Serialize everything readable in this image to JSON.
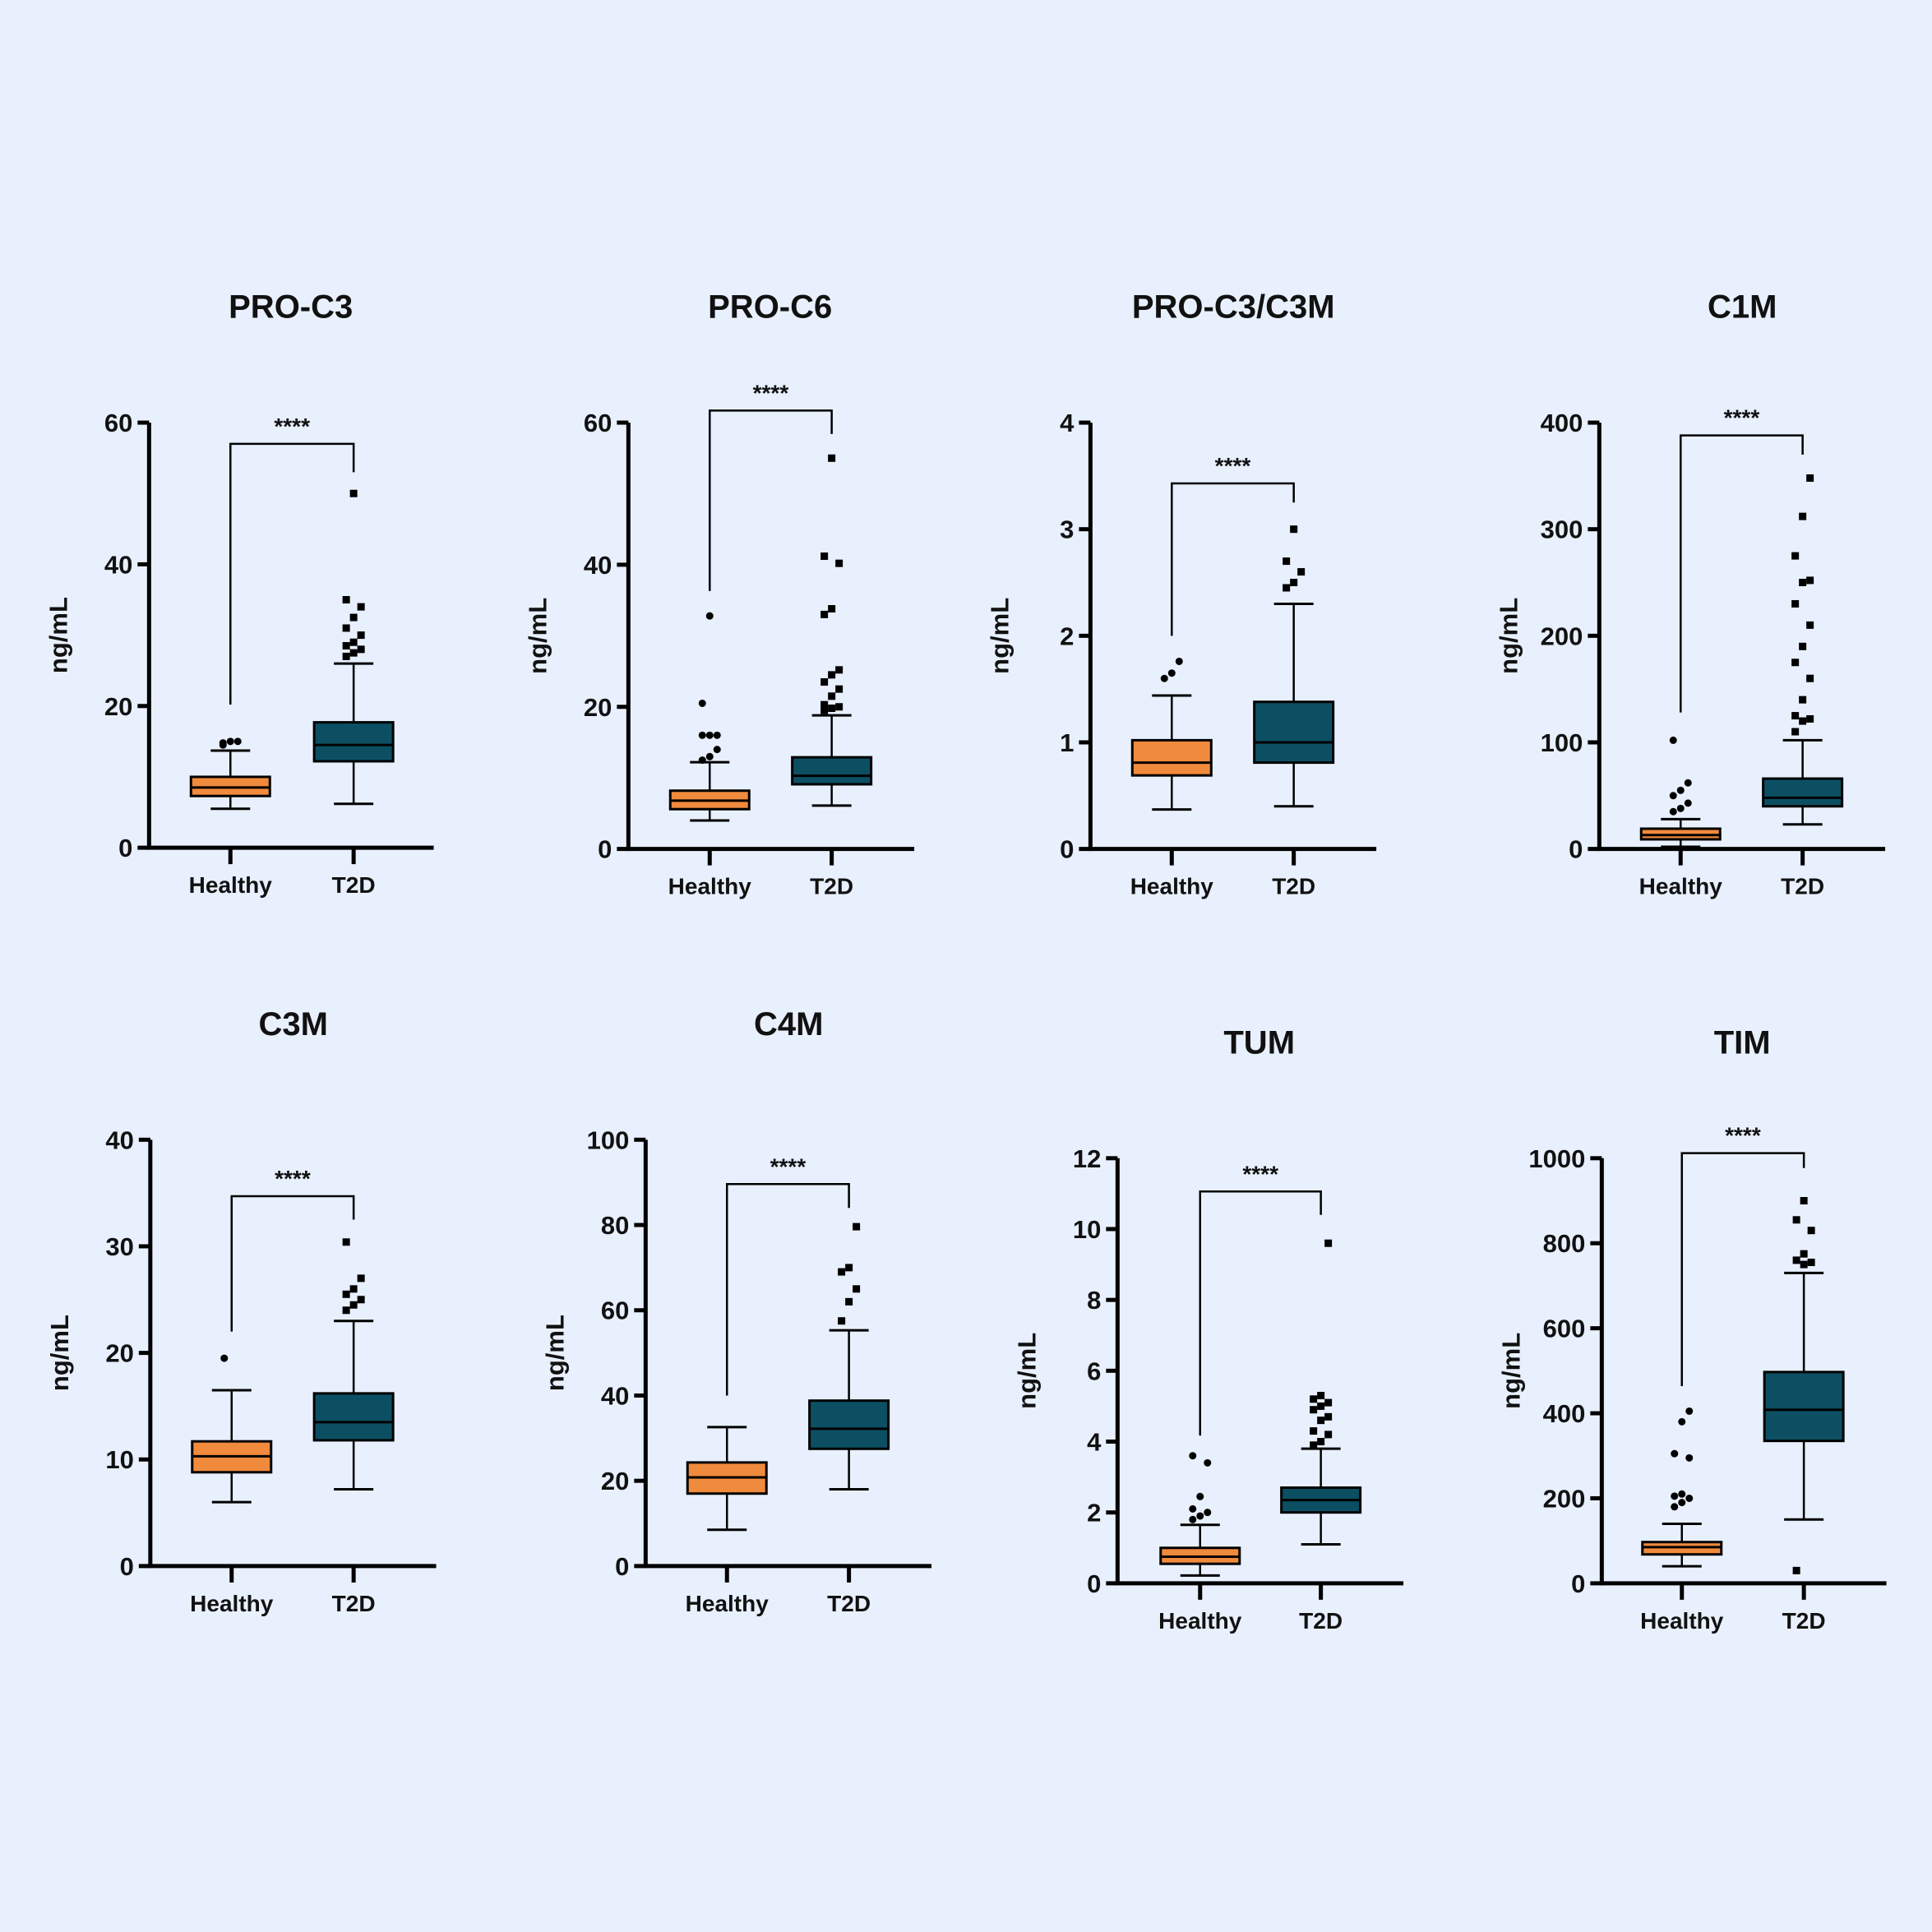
{
  "colors": {
    "background": "#e8f0fd",
    "healthy": "#f08a3c",
    "t2d": "#0c4f63"
  },
  "chart_data": [
    {
      "type": "box",
      "title": "PRO-C3",
      "ylabel": "ng/mL",
      "ylim": [
        0,
        60
      ],
      "yticks": [
        0,
        20,
        40,
        60
      ],
      "categories": [
        "Healthy",
        "T2D"
      ],
      "significance": "****",
      "bracket": {
        "y": 57,
        "left_end": 20.2,
        "right_end": 53
      },
      "series": [
        {
          "name": "Healthy",
          "min": 5.5,
          "q1": 7.3,
          "median": 8.5,
          "q3": 10,
          "max": 13.7,
          "outliers": [
            14.5,
            15,
            15,
            14.8
          ]
        },
        {
          "name": "T2D",
          "min": 6.2,
          "q1": 12.2,
          "median": 14.5,
          "q3": 17.7,
          "max": 26,
          "outliers": [
            27,
            27.5,
            28,
            28.5,
            29,
            30,
            31,
            32.5,
            34,
            35,
            50
          ]
        }
      ]
    },
    {
      "type": "box",
      "title": "PRO-C6",
      "ylabel": "ng/mL",
      "ylim": [
        0,
        60
      ],
      "yticks": [
        0,
        20,
        40,
        60
      ],
      "categories": [
        "Healthy",
        "T2D"
      ],
      "significance": "****",
      "bracket": {
        "y": 61.7,
        "left_end": 36.3,
        "right_end": 58.4
      },
      "series": [
        {
          "name": "Healthy",
          "min": 4,
          "q1": 5.6,
          "median": 6.8,
          "q3": 8.2,
          "max": 12.2,
          "outliers": [
            12.5,
            13,
            14,
            16,
            16,
            16,
            20.5,
            32.8
          ]
        },
        {
          "name": "T2D",
          "min": 6.1,
          "q1": 9.1,
          "median": 10.3,
          "q3": 12.9,
          "max": 18.8,
          "outliers": [
            19.5,
            19.8,
            20,
            20.3,
            21.5,
            22.5,
            23.5,
            24.5,
            25.2,
            33,
            33.8,
            40.2,
            41.2,
            55
          ]
        }
      ]
    },
    {
      "type": "box",
      "title": "PRO-C3/C3M",
      "ylabel": "ng/mL",
      "ylim": [
        0,
        4
      ],
      "yticks": [
        0,
        1,
        2,
        3,
        4
      ],
      "categories": [
        "Healthy",
        "T2D"
      ],
      "significance": "****",
      "bracket": {
        "y": 3.43,
        "left_end": 2.0,
        "right_end": 3.25
      },
      "series": [
        {
          "name": "Healthy",
          "min": 0.37,
          "q1": 0.69,
          "median": 0.81,
          "q3": 1.02,
          "max": 1.44,
          "outliers": [
            1.6,
            1.65,
            1.76
          ]
        },
        {
          "name": "T2D",
          "min": 0.4,
          "q1": 0.81,
          "median": 1.0,
          "q3": 1.38,
          "max": 2.3,
          "outliers": [
            2.45,
            2.5,
            2.6,
            2.7,
            3.0
          ]
        }
      ]
    },
    {
      "type": "box",
      "title": "C1M",
      "ylabel": "ng/mL",
      "ylim": [
        0,
        400
      ],
      "yticks": [
        0,
        100,
        200,
        300,
        400
      ],
      "categories": [
        "Healthy",
        "T2D"
      ],
      "significance": "****",
      "bracket": {
        "y": 388,
        "left_end": 128,
        "right_end": 370
      },
      "series": [
        {
          "name": "Healthy",
          "min": 2,
          "q1": 9,
          "median": 13,
          "q3": 19,
          "max": 28,
          "outliers": [
            35,
            38,
            43,
            50,
            55,
            62,
            102
          ]
        },
        {
          "name": "T2D",
          "min": 23,
          "q1": 40,
          "median": 48,
          "q3": 66,
          "max": 102,
          "outliers": [
            110,
            120,
            122,
            125,
            140,
            160,
            175,
            190,
            210,
            230,
            250,
            252,
            275,
            312,
            348
          ]
        }
      ]
    },
    {
      "type": "box",
      "title": "C3M",
      "ylabel": "ng/mL",
      "ylim": [
        0,
        40
      ],
      "yticks": [
        0,
        10,
        20,
        30,
        40
      ],
      "categories": [
        "Healthy",
        "T2D"
      ],
      "significance": "****",
      "bracket": {
        "y": 34.7,
        "left_end": 22,
        "right_end": 32.5
      },
      "series": [
        {
          "name": "Healthy",
          "min": 6,
          "q1": 8.8,
          "median": 10.3,
          "q3": 11.7,
          "max": 16.5,
          "outliers": [
            19.5
          ]
        },
        {
          "name": "T2D",
          "min": 7.2,
          "q1": 11.8,
          "median": 13.5,
          "q3": 16.2,
          "max": 23,
          "outliers": [
            24,
            24.5,
            25,
            25.5,
            26,
            27,
            30.4
          ]
        }
      ]
    },
    {
      "type": "box",
      "title": "C4M",
      "ylabel": "ng/mL",
      "ylim": [
        0,
        100
      ],
      "yticks": [
        0,
        20,
        40,
        60,
        80,
        100
      ],
      "categories": [
        "Healthy",
        "T2D"
      ],
      "significance": "****",
      "bracket": {
        "y": 89.6,
        "left_end": 40,
        "right_end": 84
      },
      "series": [
        {
          "name": "Healthy",
          "min": 8.5,
          "q1": 17,
          "median": 20.8,
          "q3": 24.3,
          "max": 32.6,
          "outliers": []
        },
        {
          "name": "T2D",
          "min": 18,
          "q1": 27.5,
          "median": 32.2,
          "q3": 38.8,
          "max": 55.3,
          "outliers": [
            57.5,
            62,
            65,
            69,
            70,
            79.6
          ]
        }
      ]
    },
    {
      "type": "box",
      "title": "TUM",
      "ylabel": "ng/mL",
      "ylim": [
        0,
        12
      ],
      "yticks": [
        0,
        2,
        4,
        6,
        8,
        10,
        12
      ],
      "categories": [
        "Healthy",
        "T2D"
      ],
      "significance": "****",
      "bracket": {
        "y": 11.06,
        "left_end": 4.17,
        "right_end": 10.4
      },
      "series": [
        {
          "name": "Healthy",
          "min": 0.22,
          "q1": 0.55,
          "median": 0.75,
          "q3": 1.0,
          "max": 1.65,
          "outliers": [
            1.8,
            1.9,
            2.0,
            2.1,
            2.45,
            3.4,
            3.6
          ]
        },
        {
          "name": "T2D",
          "min": 1.1,
          "q1": 2.0,
          "median": 2.35,
          "q3": 2.7,
          "max": 3.8,
          "outliers": [
            3.9,
            4.0,
            4.2,
            4.3,
            4.6,
            4.7,
            4.9,
            5.0,
            5.1,
            5.2,
            5.3,
            9.6
          ]
        }
      ]
    },
    {
      "type": "box",
      "title": "TIM",
      "ylabel": "ng/mL",
      "ylim": [
        0,
        1000
      ],
      "yticks": [
        0,
        200,
        400,
        600,
        800,
        1000
      ],
      "categories": [
        "Healthy",
        "T2D"
      ],
      "significance": "****",
      "bracket": {
        "y": 1012,
        "left_end": 464,
        "right_end": 977
      },
      "series": [
        {
          "name": "Healthy",
          "min": 40,
          "q1": 68,
          "median": 85,
          "q3": 97,
          "max": 140,
          "outliers": [
            180,
            190,
            200,
            205,
            210,
            295,
            305,
            380,
            405
          ]
        },
        {
          "name": "T2D",
          "min": 150,
          "q1": 335,
          "median": 408,
          "q3": 497,
          "max": 730,
          "outliers": [
            30,
            750,
            755,
            760,
            775,
            830,
            855,
            900
          ]
        }
      ]
    }
  ]
}
